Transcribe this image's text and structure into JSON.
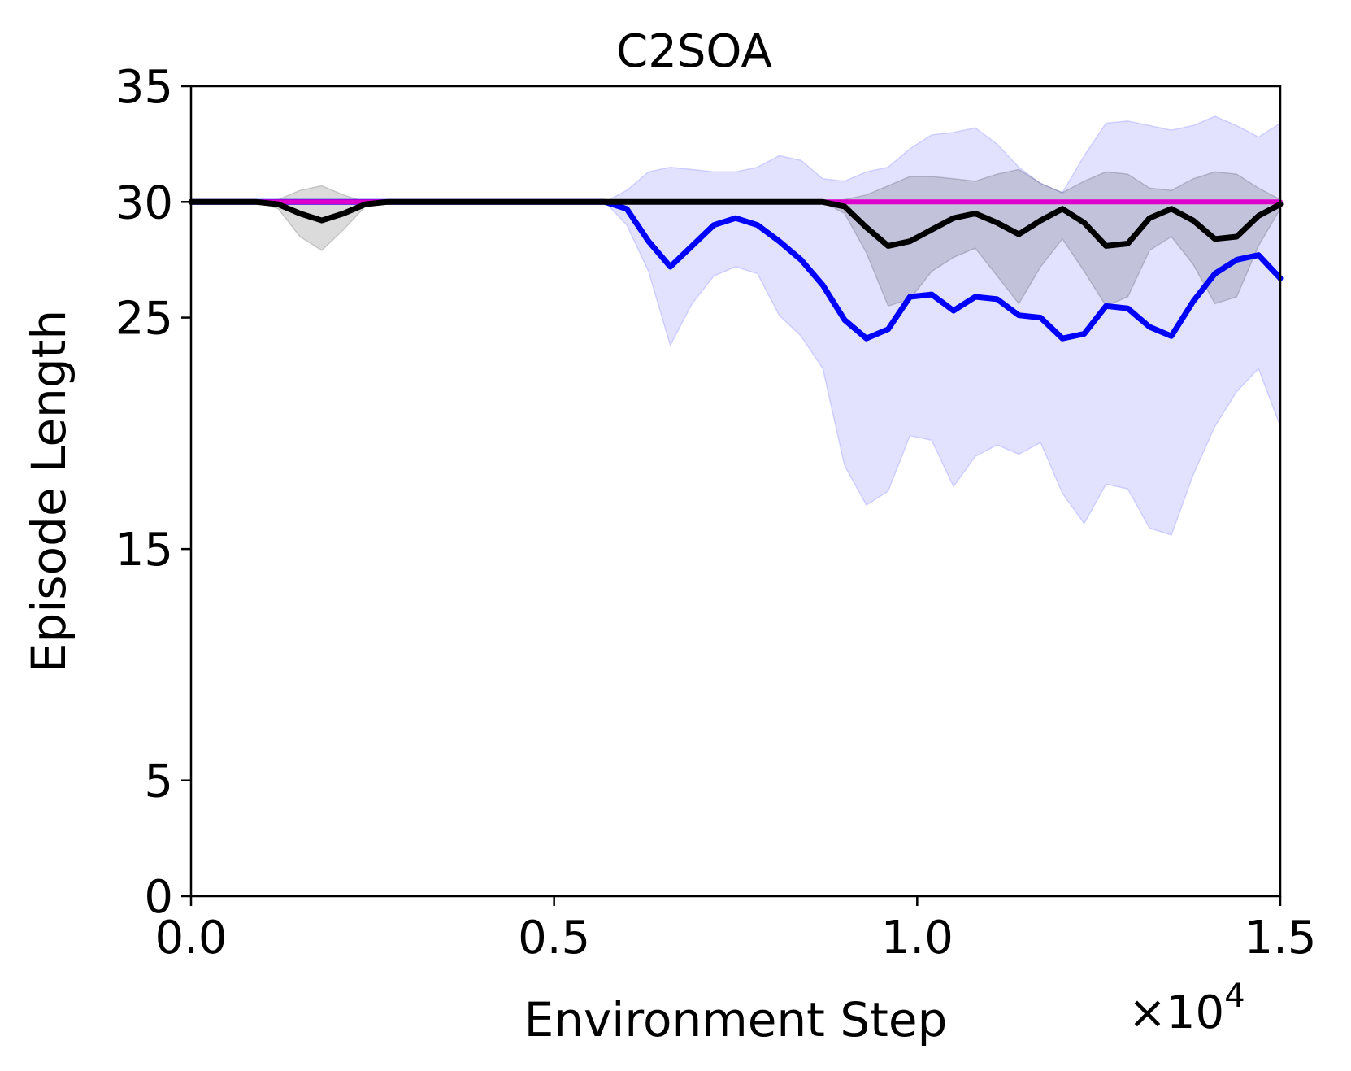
{
  "chart_data": {
    "type": "line",
    "title": "C2SOA",
    "xlabel": "Environment Step",
    "ylabel": "Episode Length",
    "x_offset_text": {
      "base": "×10",
      "exponent": "4"
    },
    "xlim": [
      0,
      1.5
    ],
    "ylim": [
      0,
      35
    ],
    "xticks": [
      0.0,
      0.5,
      1.0,
      1.5
    ],
    "xtick_labels": [
      "0.0",
      "0.5",
      "1.0",
      "1.5"
    ],
    "yticks": [
      0,
      5,
      15,
      25,
      30,
      35
    ],
    "ytick_labels": [
      "0",
      "5",
      "15",
      "25",
      "30",
      "35"
    ],
    "grid": false,
    "x": [
      0,
      0.03,
      0.06,
      0.09,
      0.12,
      0.15,
      0.18,
      0.21,
      0.24,
      0.27,
      0.3,
      0.33,
      0.36,
      0.39,
      0.42,
      0.45,
      0.48,
      0.51,
      0.54,
      0.57,
      0.6,
      0.63,
      0.66,
      0.69,
      0.72,
      0.75,
      0.78,
      0.81,
      0.84,
      0.87,
      0.9,
      0.93,
      0.96,
      0.99,
      1.02,
      1.05,
      1.08,
      1.11,
      1.14,
      1.17,
      1.2,
      1.23,
      1.26,
      1.29,
      1.32,
      1.35,
      1.38,
      1.41,
      1.44,
      1.47,
      1.5
    ],
    "series": [
      {
        "name": "blue",
        "color": "#0000ff",
        "values": [
          30,
          30,
          30,
          30,
          30,
          30,
          30,
          30,
          30,
          30,
          30,
          30,
          30,
          30,
          30,
          30,
          30,
          30,
          30,
          30,
          29.7,
          28.3,
          27.2,
          28.1,
          29.0,
          29.3,
          29.0,
          28.3,
          27.5,
          26.4,
          24.9,
          24.1,
          24.5,
          25.9,
          26.0,
          25.3,
          25.9,
          25.8,
          25.1,
          25.0,
          24.1,
          24.3,
          25.5,
          25.4,
          24.6,
          24.2,
          25.7,
          26.9,
          27.5,
          27.7,
          26.7
        ],
        "lower": [
          30,
          30,
          30,
          30,
          30,
          30,
          30,
          30,
          30,
          30,
          30,
          30,
          30,
          30,
          30,
          30,
          30,
          30,
          30,
          30,
          29.0,
          27.0,
          23.8,
          25.6,
          26.8,
          27.2,
          26.9,
          25.1,
          24.2,
          22.8,
          18.6,
          16.9,
          17.5,
          19.9,
          19.7,
          17.7,
          19.0,
          19.5,
          19.1,
          19.6,
          17.4,
          16.1,
          17.8,
          17.6,
          15.9,
          15.6,
          18.2,
          20.3,
          21.8,
          22.8,
          20.3
        ],
        "upper": [
          30,
          30,
          30,
          30,
          30,
          30,
          30,
          30,
          30,
          30,
          30,
          30,
          30,
          30,
          30,
          30,
          30,
          30,
          30,
          30,
          30.5,
          31.3,
          31.5,
          31.4,
          31.3,
          31.3,
          31.5,
          32.0,
          31.8,
          31.0,
          30.9,
          31.3,
          31.5,
          32.3,
          32.9,
          33.0,
          33.2,
          32.5,
          31.5,
          30.8,
          30.4,
          32.0,
          33.4,
          33.5,
          33.3,
          33.1,
          33.3,
          33.7,
          33.3,
          32.8,
          33.4
        ]
      },
      {
        "name": "black",
        "color": "#000000",
        "values": [
          30,
          30,
          30,
          30,
          29.9,
          29.5,
          29.2,
          29.5,
          29.9,
          30,
          30,
          30,
          30,
          30,
          30,
          30,
          30,
          30,
          30,
          30,
          30,
          30,
          30,
          30,
          30,
          30,
          30,
          30,
          30,
          30,
          29.8,
          28.9,
          28.1,
          28.3,
          28.8,
          29.3,
          29.5,
          29.1,
          28.6,
          29.2,
          29.7,
          29.1,
          28.1,
          28.2,
          29.3,
          29.7,
          29.2,
          28.4,
          28.5,
          29.4,
          29.9
        ],
        "lower": [
          30,
          30,
          30,
          30,
          29.7,
          28.5,
          27.9,
          28.8,
          29.8,
          30,
          30,
          30,
          30,
          30,
          30,
          30,
          30,
          30,
          30,
          30,
          30,
          30,
          30,
          30,
          30,
          30,
          30,
          30,
          30,
          30,
          29.5,
          27.8,
          25.5,
          25.8,
          27.0,
          27.6,
          28.0,
          26.8,
          25.6,
          27.2,
          28.4,
          27.0,
          25.5,
          25.9,
          27.9,
          28.5,
          27.3,
          25.6,
          25.9,
          28.1,
          29.7
        ],
        "upper": [
          30,
          30,
          30,
          30,
          30.1,
          30.5,
          30.7,
          30.3,
          30.0,
          30,
          30,
          30,
          30,
          30,
          30,
          30,
          30,
          30,
          30,
          30,
          30,
          30,
          30,
          30,
          30,
          30,
          30,
          30,
          30,
          30,
          30.1,
          30.3,
          30.7,
          31.1,
          31.1,
          31.0,
          30.9,
          31.2,
          31.4,
          30.8,
          30.4,
          30.9,
          31.3,
          31.2,
          30.6,
          30.5,
          31.0,
          31.3,
          31.2,
          30.6,
          30.1
        ]
      },
      {
        "name": "magenta",
        "color": "#dd00cc",
        "values": [
          30,
          30,
          30,
          30,
          30,
          30,
          30,
          30,
          30,
          30,
          30,
          30,
          30,
          30,
          30,
          30,
          30,
          30,
          30,
          30,
          30,
          30,
          30,
          30,
          30,
          30,
          30,
          30,
          30,
          30,
          30,
          30,
          30,
          30,
          30,
          30,
          30,
          30,
          30,
          30,
          30,
          30,
          30,
          30,
          30,
          30,
          30,
          30,
          30,
          30,
          30
        ]
      }
    ]
  }
}
